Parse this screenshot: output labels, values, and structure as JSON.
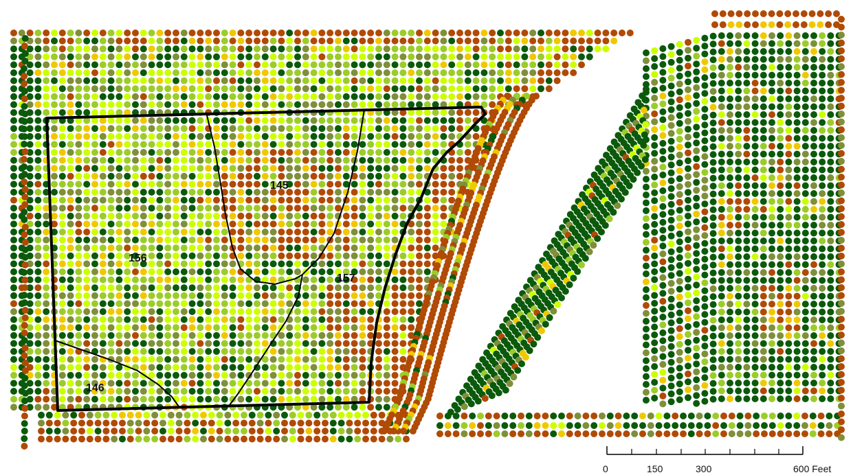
{
  "map": {
    "zones": [
      {
        "id": "156",
        "label": "156"
      },
      {
        "id": "145",
        "label": "145"
      },
      {
        "id": "157",
        "label": "157"
      },
      {
        "id": "146",
        "label": "146"
      }
    ],
    "scale_bar": {
      "ticks": [
        "0",
        "150",
        "300",
        "600 Feet"
      ]
    },
    "dot_colors": {
      "dark_green": "#0b5a0b",
      "olive": "#7f8f3a",
      "light_green": "#9ccc2a",
      "yellow_green": "#ccff00",
      "yellow": "#f0c800",
      "brown": "#b04a05"
    }
  }
}
